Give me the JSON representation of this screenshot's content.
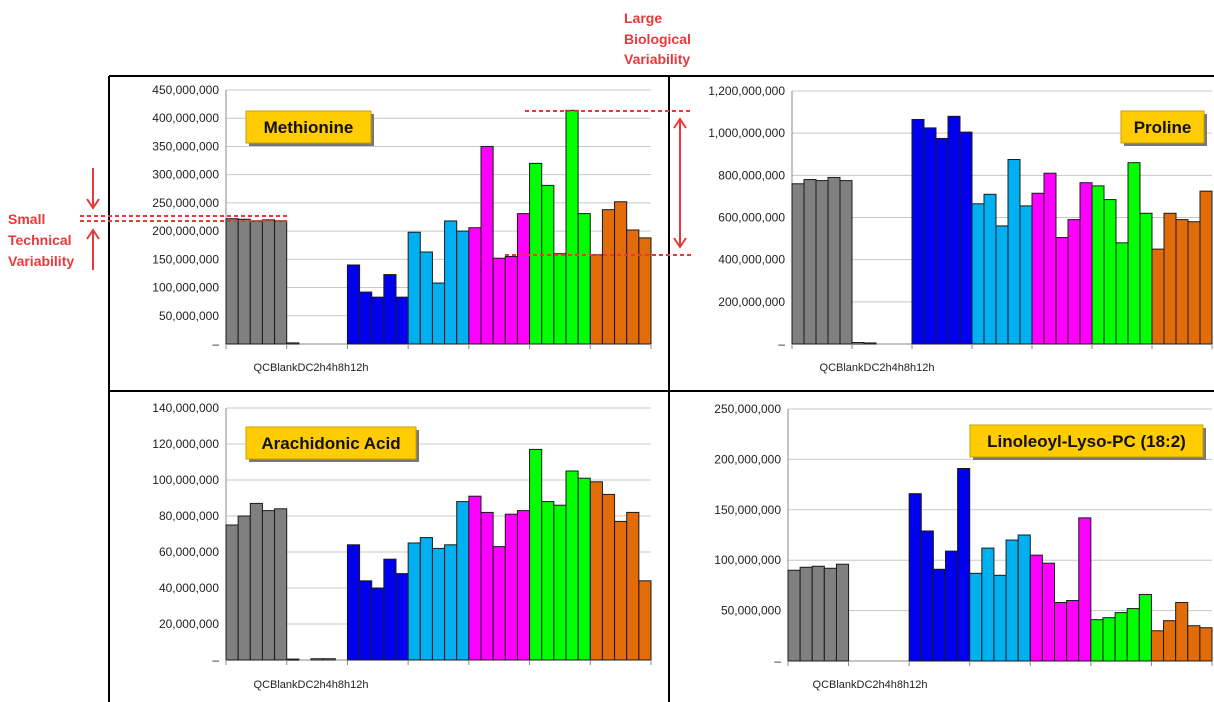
{
  "annotations": {
    "large_lines": [
      "Large",
      "Biological",
      "Variability"
    ],
    "small_lines": [
      "Small",
      "Technical",
      "Variability"
    ],
    "color": "#e8393a"
  },
  "group_colors": {
    "QC": "#808080",
    "Blank": "#bfbfbf",
    "DC": "#0000ee",
    "2h": "#00b0f0",
    "4h": "#ff00ff",
    "8h": "#00ff00",
    "12h": "#e36c0a"
  },
  "chart_data": [
    {
      "type": "bar",
      "title": "Methionine",
      "group_axis_label": "QCBlankDC2h4h8h12h",
      "groups": [
        "QC",
        "Blank",
        "DC",
        "2h",
        "4h",
        "8h",
        "12h"
      ],
      "ylim": [
        0,
        450000000
      ],
      "yticks": [
        0,
        50000000,
        100000000,
        150000000,
        200000000,
        250000000,
        300000000,
        350000000,
        400000000,
        450000000
      ],
      "ytick_labels": [
        "–",
        "50,000,000",
        "100,000,000",
        "150,000,000",
        "200,000,000",
        "250,000,000",
        "300,000,000",
        "350,000,000",
        "400,000,000",
        "450,000,000"
      ],
      "series": [
        {
          "group": "QC",
          "values": [
            222000000,
            221000000,
            218000000,
            220000000,
            218000000
          ]
        },
        {
          "group": "Blank",
          "values": [
            2000000,
            0,
            0,
            0,
            0
          ]
        },
        {
          "group": "DC",
          "values": [
            140000000,
            92000000,
            83000000,
            123000000,
            83000000
          ]
        },
        {
          "group": "2h",
          "values": [
            198000000,
            163000000,
            108000000,
            218000000,
            200000000
          ]
        },
        {
          "group": "4h",
          "values": [
            206000000,
            350000000,
            152000000,
            155000000,
            231000000
          ]
        },
        {
          "group": "8h",
          "values": [
            320000000,
            281000000,
            160000000,
            414000000,
            231000000
          ]
        },
        {
          "group": "12h",
          "values": [
            158000000,
            238000000,
            252000000,
            202000000,
            188000000
          ]
        }
      ]
    },
    {
      "type": "bar",
      "title": "Proline",
      "group_axis_label": "QCBlankDC2h4h8h12h",
      "groups": [
        "QC",
        "Blank",
        "DC",
        "2h",
        "4h",
        "8h",
        "12h"
      ],
      "ylim": [
        0,
        1200000000
      ],
      "yticks": [
        0,
        200000000,
        400000000,
        600000000,
        800000000,
        1000000000,
        1200000000
      ],
      "ytick_labels": [
        "–",
        "200,000,000",
        "400,000,000",
        "600,000,000",
        "800,000,000",
        "1,000,000,000",
        "1,200,000,000"
      ],
      "series": [
        {
          "group": "QC",
          "values": [
            760000000,
            780000000,
            775000000,
            790000000,
            775000000
          ]
        },
        {
          "group": "Blank",
          "values": [
            7000000,
            5000000,
            0,
            0,
            0
          ]
        },
        {
          "group": "DC",
          "values": [
            1065000000,
            1025000000,
            975000000,
            1080000000,
            1005000000
          ]
        },
        {
          "group": "2h",
          "values": [
            665000000,
            710000000,
            560000000,
            875000000,
            655000000
          ]
        },
        {
          "group": "4h",
          "values": [
            715000000,
            810000000,
            505000000,
            590000000,
            765000000
          ]
        },
        {
          "group": "8h",
          "values": [
            750000000,
            685000000,
            480000000,
            860000000,
            620000000
          ]
        },
        {
          "group": "12h",
          "values": [
            450000000,
            620000000,
            590000000,
            580000000,
            725000000
          ]
        }
      ]
    },
    {
      "type": "bar",
      "title": "Arachidonic Acid",
      "group_axis_label": "QCBlankDC2h4h8h12h",
      "groups": [
        "QC",
        "Blank",
        "DC",
        "2h",
        "4h",
        "8h",
        "12h"
      ],
      "ylim": [
        0,
        140000000
      ],
      "yticks": [
        0,
        20000000,
        40000000,
        60000000,
        80000000,
        100000000,
        120000000,
        140000000
      ],
      "ytick_labels": [
        "–",
        "20,000,000",
        "40,000,000",
        "60,000,000",
        "80,000,000",
        "100,000,000",
        "120,000,000",
        "140,000,000"
      ],
      "series": [
        {
          "group": "QC",
          "values": [
            75000000,
            80000000,
            87000000,
            83000000,
            84000000
          ]
        },
        {
          "group": "Blank",
          "values": [
            500000,
            0,
            700000,
            700000,
            0
          ]
        },
        {
          "group": "DC",
          "values": [
            64000000,
            44000000,
            40000000,
            56000000,
            48000000
          ]
        },
        {
          "group": "2h",
          "values": [
            65000000,
            68000000,
            62000000,
            64000000,
            88000000
          ]
        },
        {
          "group": "4h",
          "values": [
            91000000,
            82000000,
            63000000,
            81000000,
            83000000
          ]
        },
        {
          "group": "8h",
          "values": [
            117000000,
            88000000,
            86000000,
            105000000,
            101000000
          ]
        },
        {
          "group": "12h",
          "values": [
            99000000,
            92000000,
            77000000,
            82000000,
            44000000
          ]
        }
      ]
    },
    {
      "type": "bar",
      "title": "Linoleoyl-Lyso-PC (18:2)",
      "group_axis_label": "QCBlankDC2h4h8h12h",
      "groups": [
        "QC",
        "Blank",
        "DC",
        "2h",
        "4h",
        "8h",
        "12h"
      ],
      "ylim": [
        0,
        250000000
      ],
      "yticks": [
        0,
        50000000,
        100000000,
        150000000,
        200000000,
        250000000
      ],
      "ytick_labels": [
        "–",
        "50,000,000",
        "100,000,000",
        "150,000,000",
        "200,000,000",
        "250,000,000"
      ],
      "series": [
        {
          "group": "QC",
          "values": [
            90000000,
            93000000,
            94000000,
            92000000,
            96000000
          ]
        },
        {
          "group": "Blank",
          "values": [
            0,
            0,
            0,
            0,
            0
          ]
        },
        {
          "group": "DC",
          "values": [
            166000000,
            129000000,
            91000000,
            109000000,
            191000000
          ]
        },
        {
          "group": "2h",
          "values": [
            87000000,
            112000000,
            85000000,
            120000000,
            125000000
          ]
        },
        {
          "group": "4h",
          "values": [
            105000000,
            97000000,
            58000000,
            60000000,
            142000000
          ]
        },
        {
          "group": "8h",
          "values": [
            41000000,
            43000000,
            48000000,
            52000000,
            66000000
          ]
        },
        {
          "group": "12h",
          "values": [
            30000000,
            40000000,
            58000000,
            35000000,
            33000000
          ]
        }
      ]
    }
  ]
}
